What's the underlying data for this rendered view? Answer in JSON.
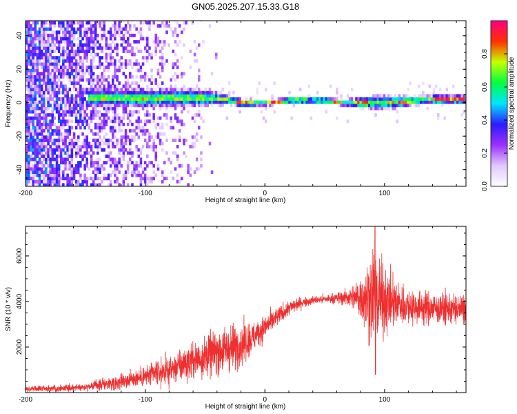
{
  "title": "GN05.2025.207.15.33.G18",
  "chart_data": [
    {
      "type": "heatmap",
      "xlabel": "Height of straight line (km)",
      "ylabel": "Frequency (Hz)",
      "xlim": [
        -200,
        168
      ],
      "ylim": [
        -50,
        49
      ],
      "x_ticks": [
        -200,
        -100,
        0,
        100
      ],
      "y_ticks": [
        -40,
        -20,
        0,
        20,
        40
      ],
      "grid": false,
      "colorbar": {
        "label": "Normalized spectral amplitude",
        "range": [
          0,
          1
        ],
        "ticks": [
          0.0,
          0.2,
          0.4,
          0.6,
          0.8
        ],
        "colors": [
          "#ffffff",
          "#e0c8ff",
          "#9b30ff",
          "#2a1cff",
          "#00e5ff",
          "#00ff40",
          "#c8ff00",
          "#ff3000",
          "#ff0080"
        ]
      },
      "band_center_hz": [
        [
          -148,
          2
        ],
        [
          -120,
          2
        ],
        [
          -100,
          1.5
        ],
        [
          -80,
          2
        ],
        [
          -60,
          2
        ],
        [
          -45,
          2
        ],
        [
          -30,
          0.5
        ],
        [
          -20,
          -1
        ],
        [
          0,
          -1
        ],
        [
          20,
          0.5
        ],
        [
          40,
          0.5
        ],
        [
          55,
          0
        ],
        [
          65,
          -1
        ],
        [
          80,
          -1
        ],
        [
          95,
          -1
        ],
        [
          110,
          -0.5
        ],
        [
          120,
          0
        ],
        [
          140,
          1
        ],
        [
          168,
          1
        ]
      ],
      "band_halfwidth_hz": [
        [
          -148,
          6
        ],
        [
          -100,
          6
        ],
        [
          -60,
          6
        ],
        [
          -45,
          5
        ],
        [
          -30,
          3
        ],
        [
          0,
          2
        ],
        [
          60,
          2
        ],
        [
          75,
          3
        ],
        [
          95,
          5
        ],
        [
          110,
          4
        ],
        [
          125,
          3
        ],
        [
          168,
          3
        ]
      ],
      "noise_region_km": [
        -200,
        -40
      ],
      "peak_segments_km": [
        [
          -25,
          -10
        ],
        [
          5,
          35
        ],
        [
          40,
          60
        ],
        [
          75,
          85
        ],
        [
          110,
          120
        ],
        [
          140,
          166
        ]
      ]
    },
    {
      "type": "line",
      "xlabel": "Height of straight line (km)",
      "ylabel": "SNR (10 * v/v)",
      "xlim": [
        -200,
        168
      ],
      "ylim": [
        0,
        7300
      ],
      "x_ticks": [
        -200,
        -100,
        0,
        100
      ],
      "y_ticks": [
        2000,
        4000,
        6000
      ],
      "grid": false,
      "series": [
        {
          "color": "#ef3030",
          "baseline": [
            [
              -200,
              150
            ],
            [
              -175,
              180
            ],
            [
              -150,
              250
            ],
            [
              -125,
              450
            ],
            [
              -100,
              700
            ],
            [
              -80,
              1000
            ],
            [
              -60,
              1400
            ],
            [
              -40,
              1800
            ],
            [
              -25,
              2000
            ],
            [
              -10,
              2400
            ],
            [
              0,
              2900
            ],
            [
              10,
              3300
            ],
            [
              20,
              3700
            ],
            [
              30,
              3950
            ],
            [
              40,
              4050
            ],
            [
              60,
              4150
            ],
            [
              75,
              4200
            ],
            [
              90,
              4200
            ],
            [
              105,
              3950
            ],
            [
              120,
              3800
            ],
            [
              140,
              3700
            ],
            [
              168,
              3650
            ]
          ],
          "spread": [
            [
              -200,
              100
            ],
            [
              -150,
              150
            ],
            [
              -100,
              400
            ],
            [
              -60,
              700
            ],
            [
              -40,
              900
            ],
            [
              -25,
              900
            ],
            [
              -10,
              650
            ],
            [
              0,
              450
            ],
            [
              20,
              300
            ],
            [
              40,
              150
            ],
            [
              60,
              200
            ],
            [
              75,
              500
            ],
            [
              85,
              1400
            ],
            [
              92,
              1900
            ],
            [
              100,
              1300
            ],
            [
              110,
              900
            ],
            [
              125,
              650
            ],
            [
              168,
              600
            ]
          ],
          "peak": {
            "x": 92,
            "y": 7300
          },
          "min": {
            "x": 92,
            "y": 800
          }
        }
      ]
    }
  ]
}
